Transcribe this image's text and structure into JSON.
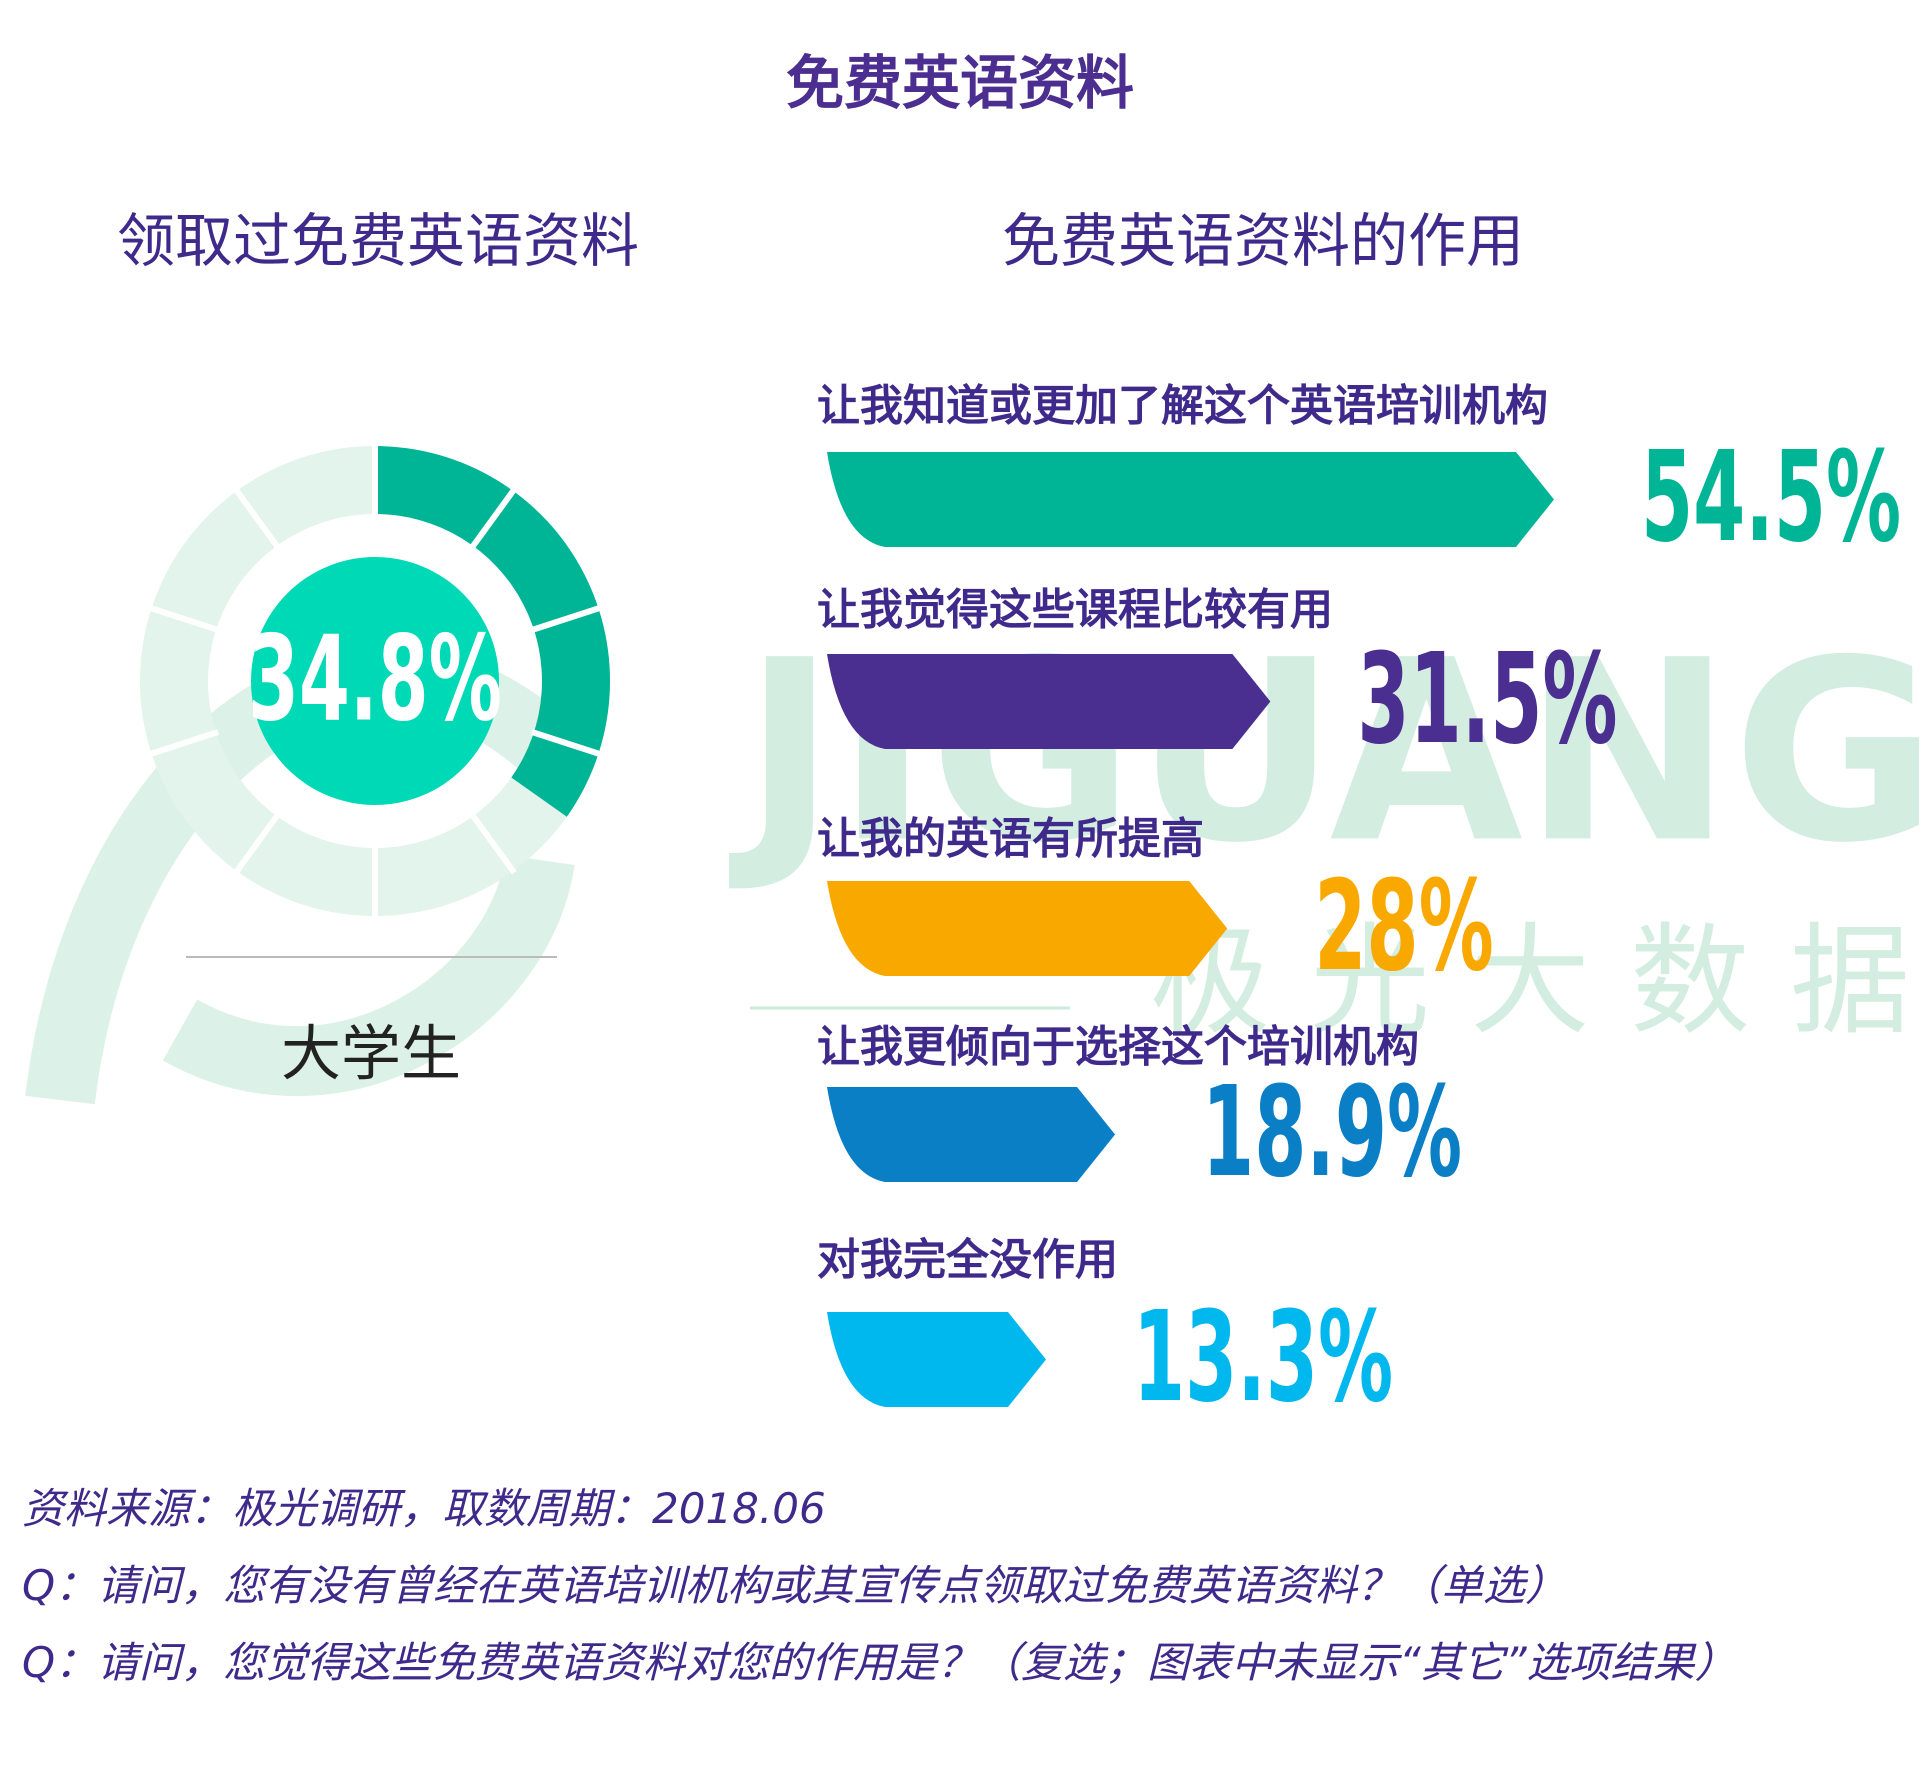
{
  "title": "免费英语资料",
  "watermark": [
    "JIGUANG",
    "极光大数据"
  ],
  "chart_data": [
    {
      "type": "donut",
      "title": "领取过免费英语资料",
      "categories": [
        "大学生"
      ],
      "values": [
        34.8
      ],
      "value_labels": [
        "34.8%"
      ],
      "color": "#00b496"
    },
    {
      "type": "bar",
      "title": "免费英语资料的作用",
      "categories": [
        "让我知道或更加了解这个英语培训机构",
        "让我觉得这些课程比较有用",
        "让我的英语有所提高",
        "让我更倾向于选择这个培训机构",
        "对我完全没作用"
      ],
      "values": [
        54.5,
        31.5,
        28,
        18.9,
        13.3
      ],
      "value_labels": [
        "54.5%",
        "31.5%",
        "28%",
        "18.9%",
        "13.3%"
      ],
      "colors": [
        "#00b496",
        "#4a2e90",
        "#f9a800",
        "#0a7fc6",
        "#00b8ee"
      ]
    }
  ],
  "notes": [
    "资料来源：极光调研，取数周期：2018.06",
    "Q：请问，您有没有曾经在英语培训机构或其宣传点领取过免费英语资料？（单选）",
    "Q：请问，您觉得这些免费英语资料对您的作用是？（复选；图表中未显示“其它”选项结果）"
  ]
}
